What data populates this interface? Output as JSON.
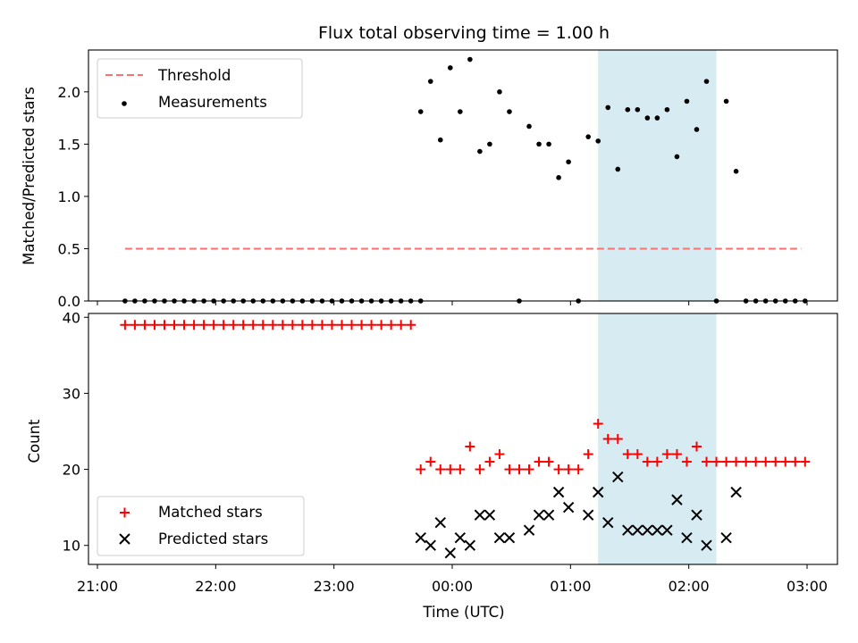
{
  "title": "Flux total observing time = 1.00 h",
  "chart_data": [
    {
      "type": "scatter",
      "ylabel": "Matched/Predicted stars",
      "xlabel": "",
      "xlim": [
        "21:00",
        "03:00"
      ],
      "ylim": [
        0,
        2.4
      ],
      "yticks": [
        "0.0",
        "0.5",
        "1.0",
        "1.5",
        "2.0"
      ],
      "grid": false,
      "legend_position": "upper left",
      "highlight_span": {
        "start": "01:14",
        "end": "02:14",
        "color": "#add8e6"
      },
      "threshold": {
        "name": "Threshold",
        "value": 0.5,
        "x_start": "21:14",
        "x_end": "02:57",
        "color": "#ff7070"
      },
      "series": [
        {
          "name": "Measurements",
          "color": "#000000",
          "marker": "dot",
          "points": [
            [
              "21:14",
              0
            ],
            [
              "21:19",
              0
            ],
            [
              "21:24",
              0
            ],
            [
              "21:29",
              0
            ],
            [
              "21:34",
              0
            ],
            [
              "21:39",
              0
            ],
            [
              "21:44",
              0
            ],
            [
              "21:49",
              0
            ],
            [
              "21:54",
              0
            ],
            [
              "21:59",
              0
            ],
            [
              "22:04",
              0
            ],
            [
              "22:09",
              0
            ],
            [
              "22:14",
              0
            ],
            [
              "22:19",
              0
            ],
            [
              "22:24",
              0
            ],
            [
              "22:29",
              0
            ],
            [
              "22:34",
              0
            ],
            [
              "22:39",
              0
            ],
            [
              "22:44",
              0
            ],
            [
              "22:49",
              0
            ],
            [
              "22:54",
              0
            ],
            [
              "22:59",
              0
            ],
            [
              "23:04",
              0
            ],
            [
              "23:09",
              0
            ],
            [
              "23:14",
              0
            ],
            [
              "23:19",
              0
            ],
            [
              "23:24",
              0
            ],
            [
              "23:29",
              0
            ],
            [
              "23:34",
              0
            ],
            [
              "23:39",
              0
            ],
            [
              "23:44",
              0
            ],
            [
              "23:44",
              1.81
            ],
            [
              "23:49",
              2.1
            ],
            [
              "23:54",
              1.54
            ],
            [
              "23:59",
              2.23
            ],
            [
              "00:04",
              1.81
            ],
            [
              "00:09",
              2.31
            ],
            [
              "00:14",
              1.43
            ],
            [
              "00:19",
              1.5
            ],
            [
              "00:24",
              2.0
            ],
            [
              "00:29",
              1.81
            ],
            [
              "00:34",
              0
            ],
            [
              "00:39",
              1.67
            ],
            [
              "00:44",
              1.5
            ],
            [
              "00:49",
              1.5
            ],
            [
              "00:54",
              1.18
            ],
            [
              "00:59",
              1.33
            ],
            [
              "01:04",
              0
            ],
            [
              "01:09",
              1.57
            ],
            [
              "01:14",
              1.53
            ],
            [
              "01:19",
              1.85
            ],
            [
              "01:24",
              1.26
            ],
            [
              "01:29",
              1.83
            ],
            [
              "01:34",
              1.83
            ],
            [
              "01:39",
              1.75
            ],
            [
              "01:44",
              1.75
            ],
            [
              "01:49",
              1.83
            ],
            [
              "01:54",
              1.38
            ],
            [
              "01:59",
              1.91
            ],
            [
              "02:04",
              1.64
            ],
            [
              "02:09",
              2.1
            ],
            [
              "02:14",
              0
            ],
            [
              "02:19",
              1.91
            ],
            [
              "02:24",
              1.24
            ],
            [
              "02:29",
              0
            ],
            [
              "02:34",
              0
            ],
            [
              "02:39",
              0
            ],
            [
              "02:44",
              0
            ],
            [
              "02:49",
              0
            ],
            [
              "02:54",
              0
            ],
            [
              "02:59",
              0
            ]
          ]
        }
      ]
    },
    {
      "type": "scatter",
      "ylabel": "Count",
      "xlabel": "Time (UTC)",
      "xlim": [
        "21:00",
        "03:00"
      ],
      "xticks": [
        "21:00",
        "22:00",
        "23:00",
        "00:00",
        "01:00",
        "02:00",
        "03:00"
      ],
      "ylim": [
        7.5,
        40.5
      ],
      "yticks": [
        "10",
        "20",
        "30",
        "40"
      ],
      "grid": false,
      "legend_position": "lower left",
      "highlight_span": {
        "start": "01:14",
        "end": "02:14",
        "color": "#add8e6"
      },
      "series": [
        {
          "name": "Matched stars",
          "color": "#ff0000",
          "marker": "plus",
          "points": [
            [
              "21:14",
              39
            ],
            [
              "21:19",
              39
            ],
            [
              "21:24",
              39
            ],
            [
              "21:29",
              39
            ],
            [
              "21:34",
              39
            ],
            [
              "21:39",
              39
            ],
            [
              "21:44",
              39
            ],
            [
              "21:49",
              39
            ],
            [
              "21:54",
              39
            ],
            [
              "21:59",
              39
            ],
            [
              "22:04",
              39
            ],
            [
              "22:09",
              39
            ],
            [
              "22:14",
              39
            ],
            [
              "22:19",
              39
            ],
            [
              "22:24",
              39
            ],
            [
              "22:29",
              39
            ],
            [
              "22:34",
              39
            ],
            [
              "22:39",
              39
            ],
            [
              "22:44",
              39
            ],
            [
              "22:49",
              39
            ],
            [
              "22:54",
              39
            ],
            [
              "22:59",
              39
            ],
            [
              "23:04",
              39
            ],
            [
              "23:09",
              39
            ],
            [
              "23:14",
              39
            ],
            [
              "23:19",
              39
            ],
            [
              "23:24",
              39
            ],
            [
              "23:29",
              39
            ],
            [
              "23:34",
              39
            ],
            [
              "23:39",
              39
            ],
            [
              "23:44",
              20
            ],
            [
              "23:49",
              21
            ],
            [
              "23:54",
              20
            ],
            [
              "23:59",
              20
            ],
            [
              "00:04",
              20
            ],
            [
              "00:09",
              23
            ],
            [
              "00:14",
              20
            ],
            [
              "00:19",
              21
            ],
            [
              "00:24",
              22
            ],
            [
              "00:29",
              20
            ],
            [
              "00:34",
              20
            ],
            [
              "00:39",
              20
            ],
            [
              "00:44",
              21
            ],
            [
              "00:49",
              21
            ],
            [
              "00:54",
              20
            ],
            [
              "00:59",
              20
            ],
            [
              "01:04",
              20
            ],
            [
              "01:09",
              22
            ],
            [
              "01:14",
              26
            ],
            [
              "01:19",
              24
            ],
            [
              "01:24",
              24
            ],
            [
              "01:29",
              22
            ],
            [
              "01:34",
              22
            ],
            [
              "01:39",
              21
            ],
            [
              "01:44",
              21
            ],
            [
              "01:49",
              22
            ],
            [
              "01:54",
              22
            ],
            [
              "01:59",
              21
            ],
            [
              "02:04",
              23
            ],
            [
              "02:09",
              21
            ],
            [
              "02:14",
              21
            ],
            [
              "02:19",
              21
            ],
            [
              "02:24",
              21
            ],
            [
              "02:29",
              21
            ],
            [
              "02:34",
              21
            ],
            [
              "02:39",
              21
            ],
            [
              "02:44",
              21
            ],
            [
              "02:49",
              21
            ],
            [
              "02:54",
              21
            ],
            [
              "02:59",
              21
            ]
          ]
        },
        {
          "name": "Predicted stars",
          "color": "#000000",
          "marker": "x",
          "points": [
            [
              "23:44",
              11
            ],
            [
              "23:49",
              10
            ],
            [
              "23:54",
              13
            ],
            [
              "23:59",
              9
            ],
            [
              "00:04",
              11
            ],
            [
              "00:09",
              10
            ],
            [
              "00:14",
              14
            ],
            [
              "00:19",
              14
            ],
            [
              "00:24",
              11
            ],
            [
              "00:29",
              11
            ],
            [
              "00:39",
              12
            ],
            [
              "00:44",
              14
            ],
            [
              "00:49",
              14
            ],
            [
              "00:54",
              17
            ],
            [
              "00:59",
              15
            ],
            [
              "01:09",
              14
            ],
            [
              "01:14",
              17
            ],
            [
              "01:19",
              13
            ],
            [
              "01:24",
              19
            ],
            [
              "01:29",
              12
            ],
            [
              "01:34",
              12
            ],
            [
              "01:39",
              12
            ],
            [
              "01:44",
              12
            ],
            [
              "01:49",
              12
            ],
            [
              "01:54",
              16
            ],
            [
              "01:59",
              11
            ],
            [
              "02:04",
              14
            ],
            [
              "02:09",
              10
            ],
            [
              "02:19",
              11
            ],
            [
              "02:24",
              17
            ]
          ]
        }
      ]
    }
  ]
}
